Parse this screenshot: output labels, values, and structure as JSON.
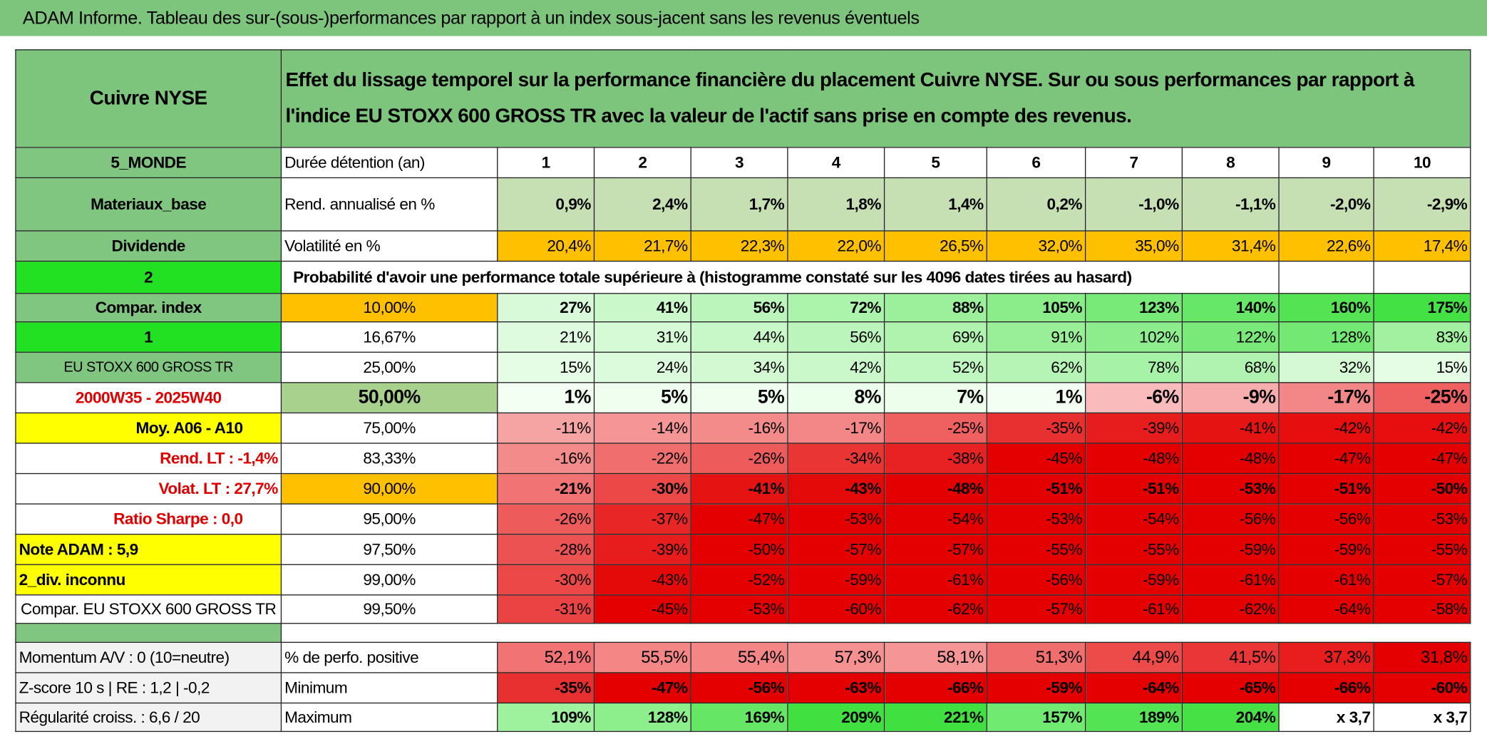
{
  "title": "ADAM Informe. Tableau des sur-(sous-)performances par rapport à un index sous-jacent sans les revenus éventuels",
  "header": {
    "asset": "Cuivre NYSE",
    "description": "Effet du lissage temporel sur la performance financière du placement Cuivre NYSE. Sur ou sous performances par rapport à l'indice EU STOXX 600 GROSS TR avec la valeur de l'actif sans prise en compte des revenus."
  },
  "rows": [
    [
      "5_MONDE",
      "Durée détention (an)",
      1,
      2,
      3,
      4,
      5,
      6,
      7,
      8,
      9,
      10
    ],
    [
      "Materiaux_base",
      "Rend. annualisé en %",
      "0,9%",
      "2,4%",
      "1,7%",
      "1,8%",
      "1,4%",
      "0,2%",
      "-1,0%",
      "-1,1%",
      "-2,0%",
      "-2,9%"
    ],
    [
      "Dividende",
      "Volatilité en %",
      "20,4%",
      "21,7%",
      "22,3%",
      "22,0%",
      "26,5%",
      "32,0%",
      "35,0%",
      "31,4%",
      "22,6%",
      "17,4%"
    ],
    [
      "2",
      "Probabilité d'avoir une performance totale supérieure à (histogramme constaté sur les 4096 dates tirées au hasard)"
    ],
    [
      "Compar. index",
      "10,00%",
      "27%",
      "41%",
      "56%",
      "72%",
      "88%",
      "105%",
      "123%",
      "140%",
      "160%",
      "175%"
    ],
    [
      "1",
      "16,67%",
      "21%",
      "31%",
      "44%",
      "56%",
      "69%",
      "91%",
      "102%",
      "122%",
      "128%",
      "83%"
    ],
    [
      "EU STOXX 600 GROSS TR",
      "25,00%",
      "15%",
      "24%",
      "34%",
      "42%",
      "52%",
      "62%",
      "78%",
      "68%",
      "32%",
      "15%"
    ],
    [
      "2000W35 - 2025W40",
      "50,00%",
      "1%",
      "5%",
      "5%",
      "8%",
      "7%",
      "1%",
      "-6%",
      "-9%",
      "-17%",
      "-25%"
    ],
    [
      "Moy. A06 - A10",
      "75,00%",
      "-11%",
      "-14%",
      "-16%",
      "-17%",
      "-25%",
      "-35%",
      "-39%",
      "-41%",
      "-42%",
      "-42%"
    ],
    [
      "Rend. LT :   -1,4%",
      "83,33%",
      "-16%",
      "-22%",
      "-26%",
      "-34%",
      "-38%",
      "-45%",
      "-48%",
      "-48%",
      "-47%",
      "-47%"
    ],
    [
      "Volat. LT :   27,7%",
      "90,00%",
      "-21%",
      "-30%",
      "-41%",
      "-43%",
      "-48%",
      "-51%",
      "-51%",
      "-53%",
      "-51%",
      "-50%"
    ],
    [
      "Ratio Sharpe :    0,0",
      "95,00%",
      "-26%",
      "-37%",
      "-47%",
      "-53%",
      "-54%",
      "-53%",
      "-54%",
      "-56%",
      "-56%",
      "-53%"
    ],
    [
      "Note ADAM : 5,9",
      "97,50%",
      "-28%",
      "-39%",
      "-50%",
      "-57%",
      "-57%",
      "-55%",
      "-55%",
      "-59%",
      "-59%",
      "-55%"
    ],
    [
      "2_div. inconnu",
      "99,00%",
      "-30%",
      "-43%",
      "-52%",
      "-59%",
      "-61%",
      "-56%",
      "-59%",
      "-61%",
      "-61%",
      "-57%"
    ],
    [
      "Compar. EU STOXX 600 GROSS TR",
      "99,50%",
      "-31%",
      "-45%",
      "-53%",
      "-60%",
      "-62%",
      "-57%",
      "-61%",
      "-62%",
      "-64%",
      "-58%"
    ],
    [
      "Momentum A/V : 0 (10=neutre)",
      "% de perfo. positive",
      "52,1%",
      "55,5%",
      "55,4%",
      "57,3%",
      "58,1%",
      "51,3%",
      "44,9%",
      "41,5%",
      "37,3%",
      "31,8%"
    ],
    [
      "Z-score 10 s | RE : 1,2 | -0,2",
      "Minimum",
      "-35%",
      "-47%",
      "-56%",
      "-63%",
      "-66%",
      "-59%",
      "-64%",
      "-65%",
      "-66%",
      "-60%"
    ],
    [
      "Régularité croiss. : 6,6 / 20",
      "Maximum",
      "109%",
      "128%",
      "169%",
      "209%",
      "221%",
      "157%",
      "189%",
      "204%",
      "x 3,7",
      "x 3,7"
    ]
  ]
}
